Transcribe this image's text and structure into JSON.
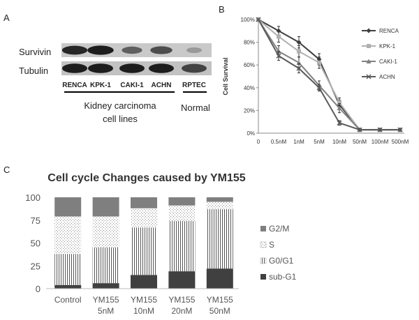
{
  "panels": {
    "a": "A",
    "b": "B",
    "c": "C"
  },
  "blot": {
    "rows": [
      "Survivin",
      "Tubulin"
    ],
    "lanes": [
      "RENCA",
      "KPK-1",
      "CAKI-1",
      "ACHN",
      "RPTEC"
    ],
    "survivin_intensity": [
      0.85,
      0.9,
      0.55,
      0.65,
      0.25
    ],
    "tubulin_intensity": [
      0.9,
      0.9,
      0.9,
      0.9,
      0.7
    ],
    "group_carcinoma": "Kidney carcinoma\ncell lines",
    "group_normal": "Normal"
  },
  "chart_data": [
    {
      "type": "line",
      "ylabel": "Cell Survival",
      "categories": [
        "0",
        "0.5nM",
        "1nM",
        "5nM",
        "10nM",
        "50nM",
        "100nM",
        "500nM"
      ],
      "y_ticks": [
        "0%",
        "20%",
        "40%",
        "60%",
        "80%",
        "100%"
      ],
      "ylim": [
        0,
        100
      ],
      "legend_position": "right",
      "series": [
        {
          "name": "RENCA",
          "color": "#404040",
          "marker": "diamond",
          "values": [
            100,
            90,
            80,
            65,
            25,
            3,
            3,
            3
          ],
          "error": [
            0,
            4,
            5,
            5,
            4,
            1,
            1,
            1
          ]
        },
        {
          "name": "KPK-1",
          "color": "#b0b0b0",
          "marker": "square",
          "values": [
            100,
            85,
            72,
            62,
            27,
            3,
            3,
            3
          ],
          "error": [
            0,
            5,
            5,
            5,
            4,
            1,
            1,
            1
          ]
        },
        {
          "name": "CAKI-1",
          "color": "#808080",
          "marker": "triangle",
          "values": [
            100,
            72,
            62,
            42,
            22,
            3,
            3,
            3
          ],
          "error": [
            0,
            5,
            5,
            4,
            4,
            1,
            1,
            1
          ]
        },
        {
          "name": "ACHN",
          "color": "#5a5a5a",
          "marker": "x",
          "values": [
            100,
            68,
            57,
            40,
            9,
            3,
            3,
            3
          ],
          "error": [
            0,
            4,
            4,
            3,
            2,
            1,
            1,
            1
          ]
        }
      ]
    },
    {
      "type": "bar",
      "stacked": true,
      "title": "Cell cycle Changes caused by YM155",
      "categories": [
        "Control",
        "YM155\n5nM",
        "YM155\n10nM",
        "YM155\n20nM",
        "YM155\n50nM"
      ],
      "y_ticks": [
        "0",
        "25",
        "50",
        "75",
        "100"
      ],
      "ylim": [
        0,
        100
      ],
      "legend_position": "right",
      "series": [
        {
          "name": "sub-G1",
          "pattern": "solid-dark",
          "values": [
            4,
            6,
            15,
            19,
            22
          ]
        },
        {
          "name": "G0/G1",
          "pattern": "vertical-lines",
          "values": [
            34,
            39,
            52,
            55,
            65
          ]
        },
        {
          "name": "S",
          "pattern": "dots",
          "values": [
            41,
            34,
            21,
            17,
            8
          ]
        },
        {
          "name": "G2/M",
          "pattern": "solid-grey",
          "values": [
            21,
            21,
            12,
            9,
            5
          ]
        }
      ]
    }
  ]
}
